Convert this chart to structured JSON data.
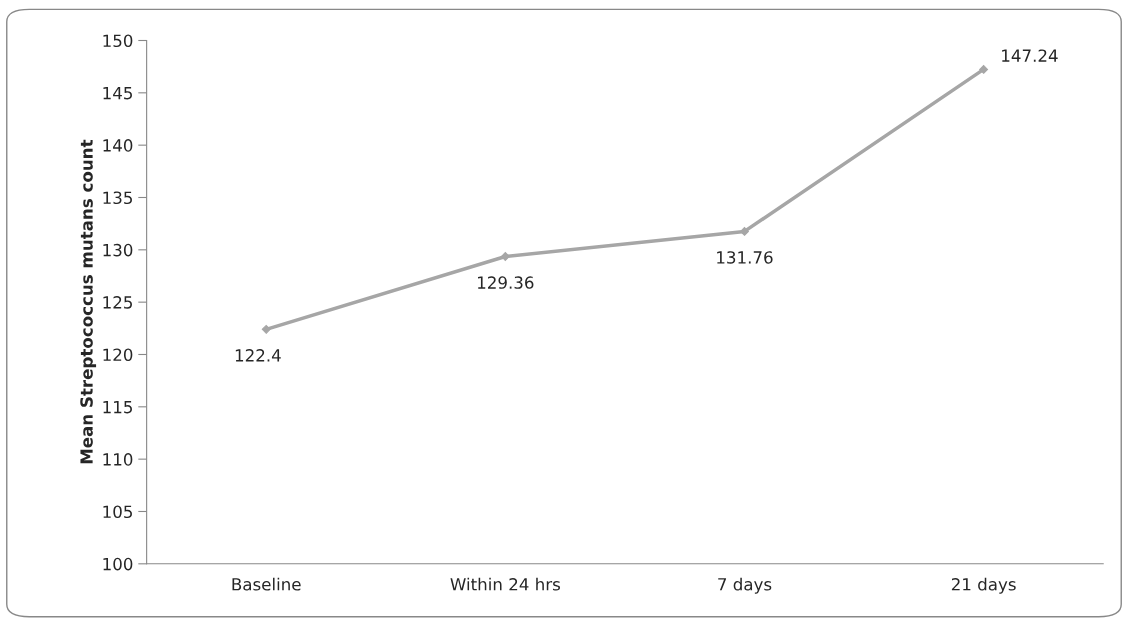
{
  "chart_data": {
    "type": "line",
    "ylabel": "Mean Streptococcus mutans count",
    "categories": [
      "Baseline",
      "Within 24 hrs",
      "7 days",
      "21 days"
    ],
    "series": [
      {
        "color": "#a6a6a6",
        "values": [
          122.4,
          129.36,
          131.76,
          147.24
        ]
      }
    ],
    "ylim": [
      100,
      150
    ],
    "yticks": [
      100,
      105,
      110,
      115,
      120,
      125,
      130,
      135,
      140,
      145,
      150
    ],
    "data_labels": true,
    "marker": "diamond",
    "line_style": "solid",
    "grid": false,
    "legend": false
  }
}
